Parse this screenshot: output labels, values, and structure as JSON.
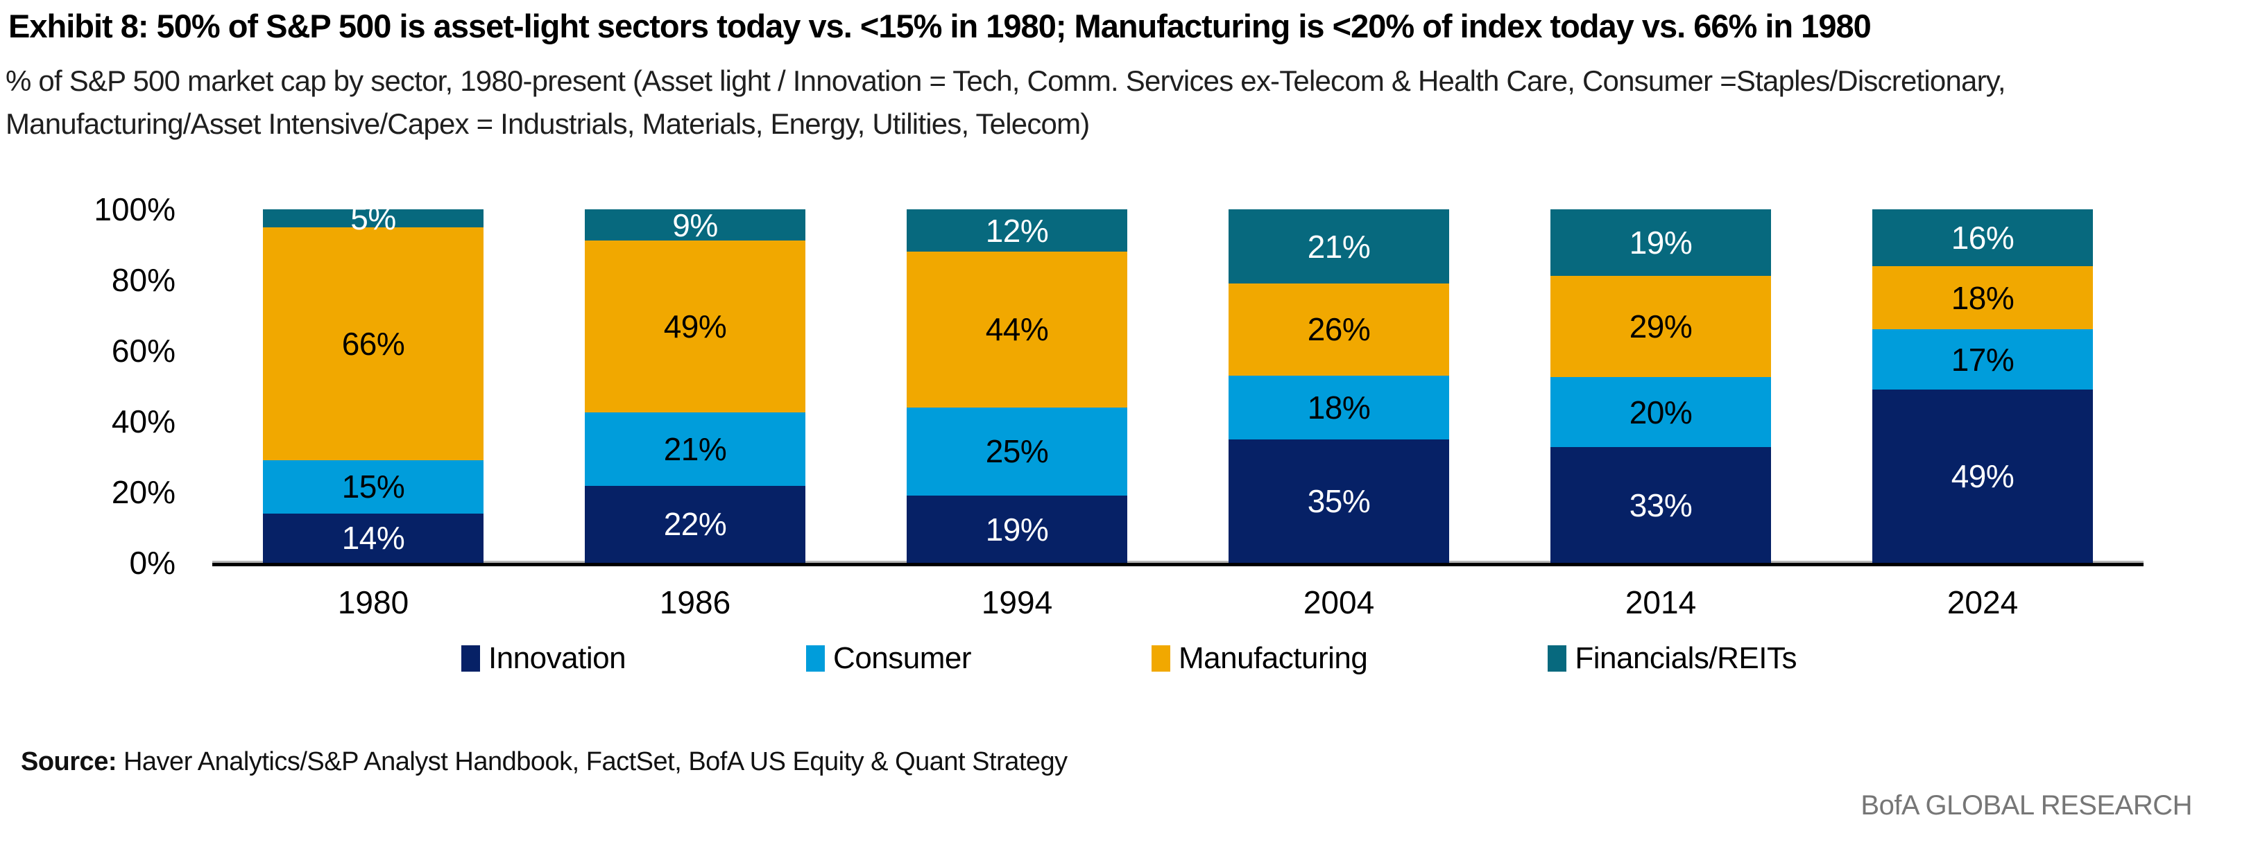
{
  "title": "Exhibit 8: 50% of S&P 500 is asset-light sectors today vs. <15% in 1980; Manufacturing is <20% of index today vs. 66% in 1980",
  "subtitle_line1": "% of S&P 500 market cap by sector, 1980-present (Asset light / Innovation = Tech, Comm. Services ex-Telecom & Health Care, Consumer =Staples/Discretionary,",
  "subtitle_line2": "Manufacturing/Asset Intensive/Capex = Industrials, Materials, Energy, Utilities, Telecom)",
  "source": {
    "label": "Source:",
    "text": "Haver Analytics/S&P Analyst Handbook, FactSet, BofA US Equity & Quant Strategy"
  },
  "brand": "BofA GLOBAL RESEARCH",
  "colors": {
    "innovation_navy": "#062166",
    "consumer_light_blue": "#009DDB",
    "manufacturing_amber": "#F1A800",
    "financials_teal": "#07697E",
    "axis_line": "#000000",
    "brand_gray": "#767676"
  },
  "chart_data": {
    "type": "bar",
    "stacked": true,
    "title": "% of S&P 500 market cap by sector, 1980-present",
    "xlabel": "",
    "ylabel": "",
    "categories": [
      "1980",
      "1986",
      "1994",
      "2004",
      "2014",
      "2024"
    ],
    "series": [
      {
        "name": "Innovation",
        "color": "#062166",
        "label_color": "#ffffff",
        "values": [
          14,
          22,
          19,
          35,
          33,
          49
        ]
      },
      {
        "name": "Consumer",
        "color": "#009DDB",
        "label_color": "#000000",
        "values": [
          15,
          21,
          25,
          18,
          20,
          17
        ]
      },
      {
        "name": "Manufacturing",
        "color": "#F1A800",
        "label_color": "#000000",
        "values": [
          66,
          49,
          44,
          26,
          29,
          18
        ]
      },
      {
        "name": "Financials/REITs",
        "color": "#07697E",
        "label_color": "#ffffff",
        "values": [
          5,
          9,
          12,
          21,
          19,
          16
        ]
      }
    ],
    "value_suffix": "%",
    "yticks": [
      "0%",
      "20%",
      "40%",
      "60%",
      "80%",
      "100%"
    ],
    "ylim": [
      0,
      100
    ],
    "grid": false,
    "legend_position": "bottom"
  }
}
